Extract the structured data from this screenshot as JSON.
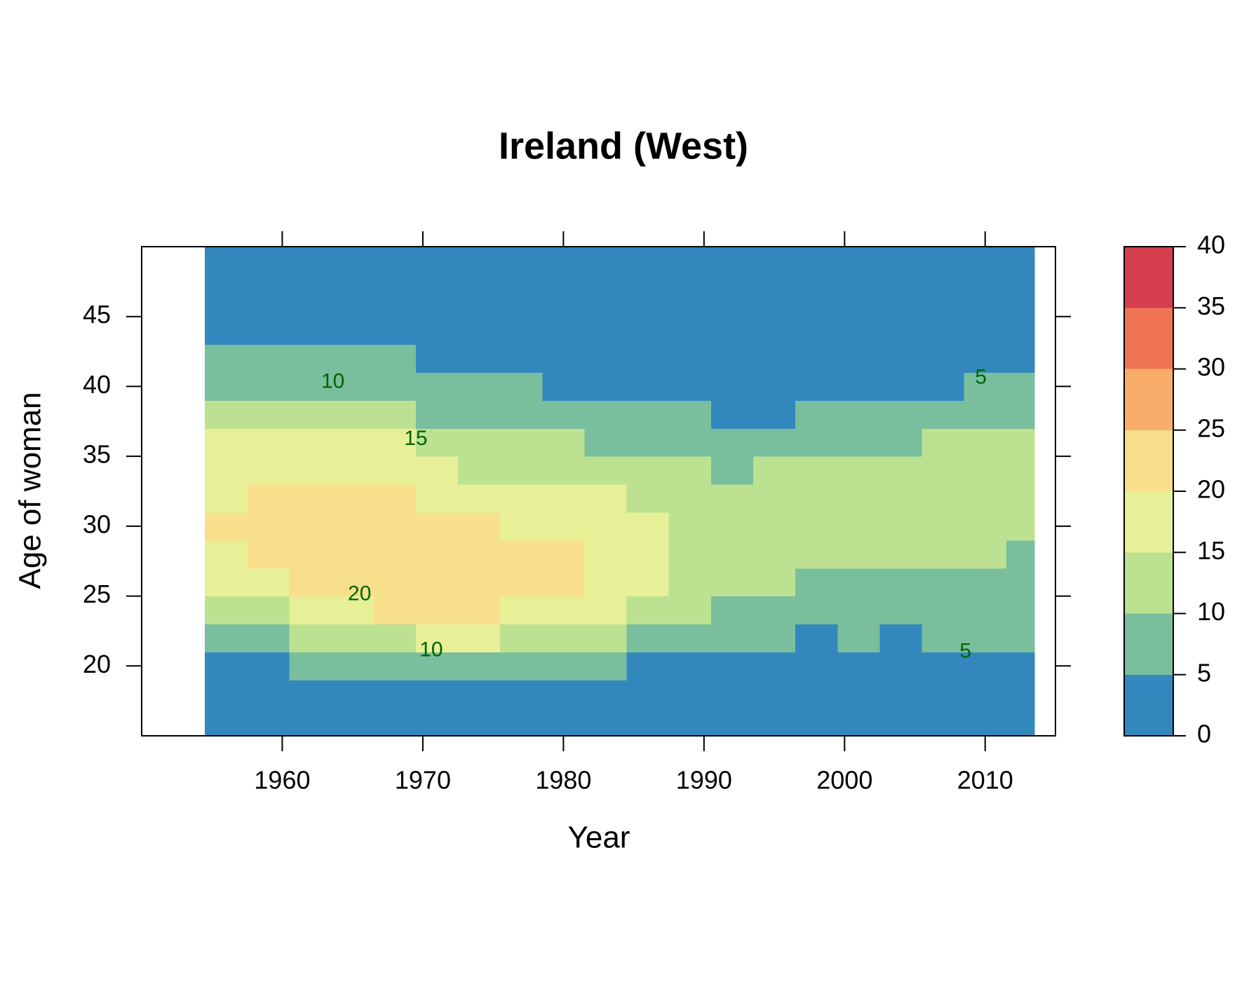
{
  "chart_data": {
    "type": "heatmap",
    "title": "Ireland (West)",
    "x_label": "Year",
    "y_label": "Age of woman",
    "xlim": [
      1950,
      2015
    ],
    "ylim": [
      15,
      50
    ],
    "xticks": [
      1960,
      1970,
      1980,
      1990,
      2000,
      2010
    ],
    "yticks": [
      20,
      25,
      30,
      35,
      40,
      45
    ],
    "x_bins": [
      1954.5,
      1957.5,
      1960.5,
      1963.5,
      1966.5,
      1969.5,
      1972.5,
      1975.5,
      1978.5,
      1981.5,
      1984.5,
      1987.5,
      1990.5,
      1993.5,
      1996.5,
      1999.5,
      2002.5,
      2005.5,
      2008.5,
      2011.5,
      2013.5
    ],
    "y_bins": [
      15,
      17,
      19,
      21,
      23,
      25,
      27,
      29,
      31,
      33,
      35,
      37,
      39,
      41,
      43,
      45,
      47,
      49,
      50
    ],
    "values": [
      [
        1,
        2,
        4,
        8,
        13,
        17,
        19,
        21,
        19.8,
        17,
        15.2,
        12,
        9,
        6,
        3,
        1.5,
        0.8,
        0.4
      ],
      [
        1,
        2,
        4.5,
        9.8,
        14.5,
        18,
        21,
        22.5,
        21.5,
        18,
        16,
        12.5,
        9,
        6,
        3,
        1.5,
        0.8,
        0.4
      ],
      [
        1,
        2.5,
        5.5,
        10.5,
        16,
        20.5,
        23,
        23.5,
        22.5,
        19,
        16.5,
        13,
        9.5,
        6.5,
        3.5,
        1.8,
        0.9,
        0.5
      ],
      [
        1,
        2.5,
        6,
        11,
        17,
        21.5,
        23.5,
        24,
        22.5,
        19,
        16.5,
        13,
        9.6,
        6.5,
        3.5,
        1.8,
        0.9,
        0.5
      ],
      [
        1,
        2.7,
        6.5,
        12,
        20.3,
        22.5,
        23.5,
        23,
        20.2,
        17.5,
        15.2,
        11.5,
        8.5,
        5.5,
        3,
        1.6,
        0.8,
        0.4
      ],
      [
        1,
        3,
        7,
        15.2,
        20.8,
        22.8,
        23.5,
        22.5,
        19.8,
        17,
        14,
        9.8,
        7,
        4.8,
        2.5,
        1.4,
        0.7,
        0.4
      ],
      [
        1,
        3.5,
        8,
        15.1,
        20.4,
        22.5,
        22.8,
        21.5,
        17.5,
        14.5,
        11.5,
        8.5,
        6,
        4,
        2.2,
        1.2,
        0.6,
        0.3
      ],
      [
        1,
        4,
        8.5,
        14.5,
        18.5,
        21.8,
        22,
        19.5,
        16.5,
        13.5,
        10.6,
        8,
        5.3,
        3.5,
        2,
        1.1,
        0.5,
        0.3
      ],
      [
        1,
        3.8,
        7.8,
        12.5,
        17,
        20.1,
        20.1,
        18,
        15.6,
        13,
        10.4,
        7.5,
        4.8,
        3,
        1.8,
        1,
        0.5,
        0.3
      ],
      [
        1,
        3,
        6.5,
        10.5,
        15.1,
        18,
        19,
        18,
        15.1,
        12.5,
        9.5,
        6.5,
        4.2,
        2.7,
        1.6,
        0.9,
        0.5,
        0.3
      ],
      [
        1,
        2.5,
        4.8,
        8.5,
        12.5,
        15.3,
        17,
        16,
        13.5,
        11,
        8.5,
        5.6,
        3.8,
        2.5,
        1.5,
        0.9,
        0.5,
        0.3
      ],
      [
        0.9,
        2,
        4,
        7,
        10.2,
        12.5,
        14,
        13.5,
        12,
        10.1,
        8,
        5.1,
        3.5,
        2.3,
        1.4,
        0.8,
        0.5,
        0.3
      ],
      [
        0.8,
        1.8,
        3.5,
        6,
        9,
        11.5,
        13,
        13,
        12,
        9.9,
        7.8,
        4.8,
        3.2,
        2.1,
        1.3,
        0.8,
        0.5,
        0.3
      ],
      [
        0.7,
        1.6,
        3.2,
        5.1,
        7.8,
        10.4,
        12.5,
        13,
        12.3,
        10.3,
        7.8,
        4.9,
        3.2,
        2,
        1.2,
        0.7,
        0.4,
        0.3
      ],
      [
        0.7,
        1.5,
        3,
        4.9,
        7.2,
        9.6,
        12,
        13,
        12.5,
        10.8,
        8.3,
        5.2,
        3.4,
        2.1,
        1.2,
        0.7,
        0.4,
        0.3
      ],
      [
        0.7,
        1.5,
        3,
        5.2,
        7,
        9,
        11,
        12.8,
        12.8,
        11.2,
        8.8,
        5.6,
        3.6,
        2.2,
        1.3,
        0.8,
        0.4,
        0.3
      ],
      [
        0.6,
        1.3,
        2.6,
        4,
        6,
        8.5,
        10.6,
        12.5,
        13,
        11.8,
        9.5,
        6.3,
        3.9,
        2.4,
        1.4,
        0.8,
        0.4,
        0.3
      ],
      [
        0.7,
        1.5,
        3.2,
        5.5,
        7,
        8.5,
        10.2,
        12.4,
        13.3,
        12.5,
        10.2,
        6.8,
        4.8,
        2.8,
        1.6,
        0.9,
        0.5,
        0.3
      ],
      [
        0.7,
        1.6,
        4.9,
        6,
        7.3,
        8.7,
        10.1,
        12.3,
        13.3,
        12.7,
        10.3,
        7.5,
        5.1,
        3,
        1.7,
        0.9,
        0.5,
        0.3
      ],
      [
        0.7,
        1.6,
        3.5,
        5.2,
        7,
        8.5,
        9.8,
        12,
        13.2,
        12.6,
        10.1,
        7.3,
        5.05,
        3,
        1.7,
        0.9,
        0.5,
        0.3
      ]
    ],
    "colorbar": {
      "breaks": [
        0,
        5,
        10,
        15,
        20,
        25,
        30,
        35,
        40
      ],
      "colors": [
        "#3288bd",
        "#79be9d",
        "#bce191",
        "#e7f096",
        "#f8df8b",
        "#f9ad6a",
        "#ef7554",
        "#d53e4f"
      ]
    },
    "contour_label_color": "#006400",
    "contour_labels": [
      {
        "level": 10,
        "x": 1963.6,
        "y": 40.3
      },
      {
        "level": 15,
        "x": 1969.5,
        "y": 36.2
      },
      {
        "level": 20,
        "x": 1965.5,
        "y": 25.1
      },
      {
        "level": 10,
        "x": 1970.6,
        "y": 21.1
      },
      {
        "level": 5,
        "x": 2009.7,
        "y": 40.6
      },
      {
        "level": 5,
        "x": 2008.6,
        "y": 21.0
      }
    ]
  }
}
